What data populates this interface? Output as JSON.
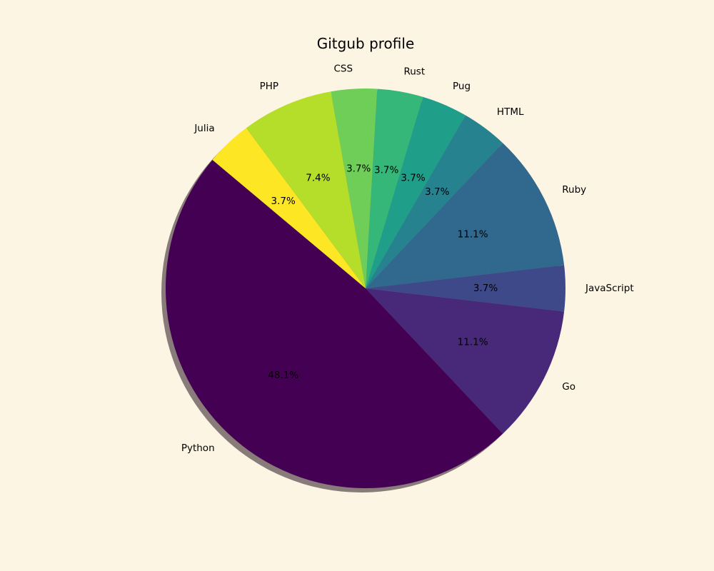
{
  "figure": {
    "background": "#fdf5e3"
  },
  "chart_data": {
    "type": "pie",
    "title": "Gitgub profile",
    "categories": [
      "Python",
      "Go",
      "JavaScript",
      "Ruby",
      "HTML",
      "Pug",
      "Rust",
      "CSS",
      "PHP",
      "Julia"
    ],
    "values": [
      13,
      3,
      1,
      3,
      1,
      1,
      1,
      1,
      2,
      1
    ],
    "percent_labels": [
      "48.1%",
      "11.1%",
      "3.7%",
      "11.1%",
      "3.7%",
      "3.7%",
      "3.7%",
      "3.7%",
      "7.4%",
      "3.7%"
    ],
    "colors": [
      "#440154",
      "#482878",
      "#3e4989",
      "#31688e",
      "#26828e",
      "#1f9e89",
      "#35b779",
      "#6ece58",
      "#b5de2b",
      "#fde725"
    ],
    "start_angle_deg": 140,
    "direction": "counterclockwise",
    "shadow": true,
    "shadow_color": "#8a7b7b",
    "legend": "none"
  }
}
